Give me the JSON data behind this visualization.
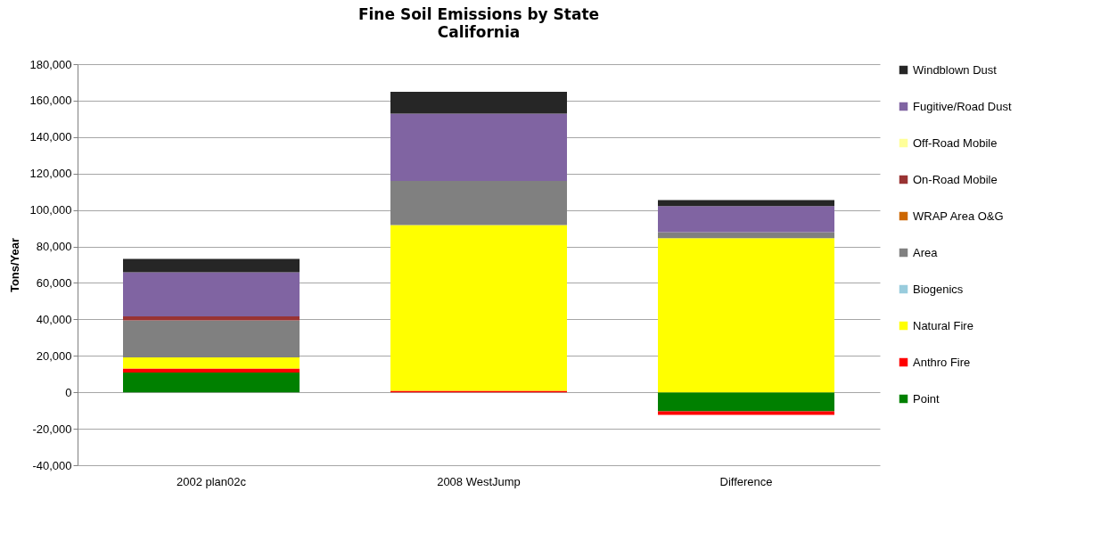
{
  "chart_data": {
    "type": "bar",
    "title": "Fine Soil Emissions by State",
    "subtitle": "California",
    "ylabel": "Tons/Year",
    "categories": [
      "2002 plan02c",
      "2008 WestJump",
      "Difference"
    ],
    "stacked": true,
    "ylim": [
      -40000,
      180000
    ],
    "yticks": [
      {
        "value": -40000,
        "label": "-40,000"
      },
      {
        "value": -20000,
        "label": "-20,000"
      },
      {
        "value": 0,
        "label": "0"
      },
      {
        "value": 20000,
        "label": "20,000"
      },
      {
        "value": 40000,
        "label": "40,000"
      },
      {
        "value": 60000,
        "label": "60,000"
      },
      {
        "value": 80000,
        "label": "80,000"
      },
      {
        "value": 100000,
        "label": "100,000"
      },
      {
        "value": 120000,
        "label": "120,000"
      },
      {
        "value": 140000,
        "label": "140,000"
      },
      {
        "value": 160000,
        "label": "160,000"
      },
      {
        "value": 180000,
        "label": "180,000"
      }
    ],
    "grid": "y",
    "legend": "right",
    "series": [
      {
        "name": "Point",
        "color": "#008000",
        "values": [
          10900,
          0,
          -10400
        ]
      },
      {
        "name": "Anthro Fire",
        "color": "#ff0000",
        "values": [
          2200,
          800,
          -2000
        ]
      },
      {
        "name": "Natural Fire",
        "color": "#ffff00",
        "values": [
          6000,
          91000,
          84600
        ]
      },
      {
        "name": "Biogenics",
        "color": "#99ccdd",
        "values": [
          0,
          0,
          0
        ]
      },
      {
        "name": "Area",
        "color": "#808080",
        "values": [
          20400,
          24100,
          3300
        ]
      },
      {
        "name": "WRAP Area O&G",
        "color": "#cc6600",
        "values": [
          0,
          0,
          0
        ]
      },
      {
        "name": "On-Road Mobile",
        "color": "#993333",
        "values": [
          2200,
          0,
          0
        ]
      },
      {
        "name": "Off-Road Mobile",
        "color": "#ffff99",
        "values": [
          0,
          0,
          0
        ]
      },
      {
        "name": "Fugitive/Road Dust",
        "color": "#8064a2",
        "values": [
          24200,
          37000,
          14200
        ]
      },
      {
        "name": "Windblown Dust",
        "color": "#262626",
        "values": [
          7300,
          11900,
          3400
        ]
      }
    ]
  }
}
